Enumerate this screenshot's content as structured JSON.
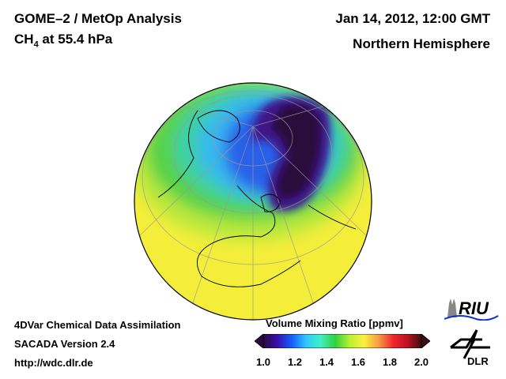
{
  "header": {
    "title": "GOME–2 / MetOp Analysis",
    "species": "CH",
    "species_sub": "4",
    "level": " at 55.4 hPa",
    "date": "Jan 14, 2012, 12:00 GMT",
    "region": "Northern Hemisphere"
  },
  "footer": {
    "line1": "4DVar Chemical Data Assimilation",
    "line2": "SACADA Version 2.4",
    "line3": "http://wdc.dlr.de"
  },
  "colorbar": {
    "title": "Volume Mixing Ratio [ppmv]",
    "ticks": [
      "1.0",
      "1.2",
      "1.4",
      "1.6",
      "1.8",
      "2.0"
    ],
    "range": [
      1.0,
      2.0
    ],
    "colors": [
      "#2a0a3a",
      "#3a10b0",
      "#1560ff",
      "#30c8ff",
      "#40f0c0",
      "#30d040",
      "#b8f030",
      "#f8f040",
      "#f8a040",
      "#f02830",
      "#c01020",
      "#3a1010"
    ]
  },
  "logos": {
    "riu": "RIU",
    "dlr": "DLR"
  }
}
